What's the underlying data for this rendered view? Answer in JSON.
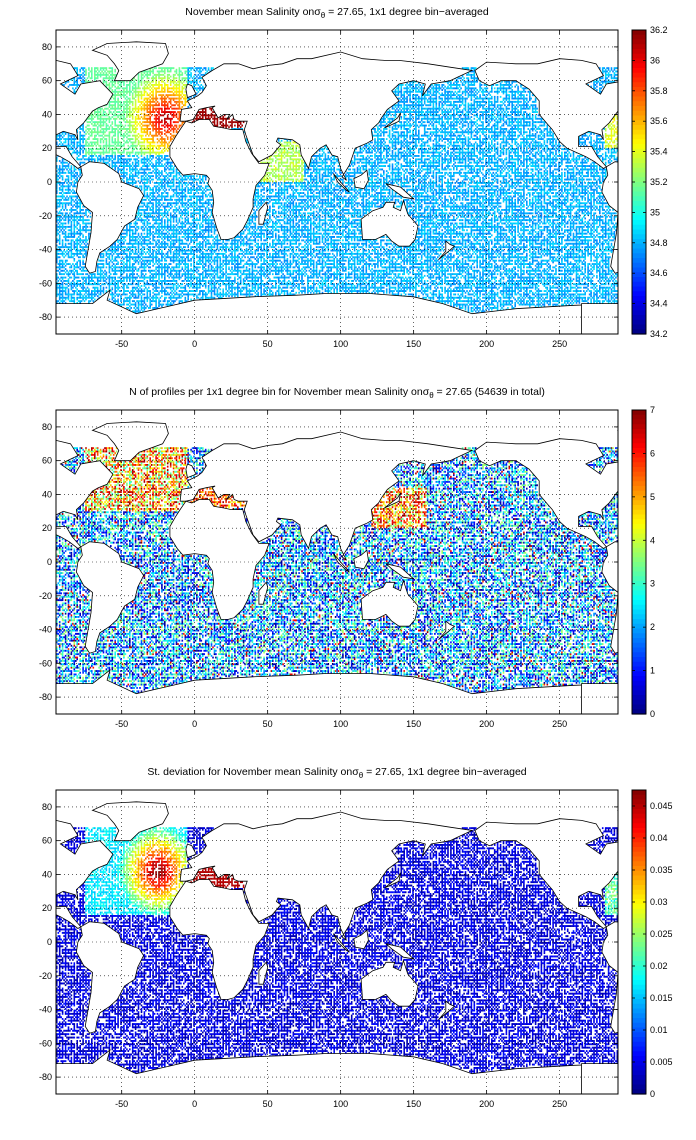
{
  "axes": {
    "x_ticks": [
      "-50",
      "0",
      "50",
      "100",
      "150",
      "200",
      "250"
    ],
    "x_values": [
      -50,
      0,
      50,
      100,
      150,
      200,
      250
    ],
    "y_ticks": [
      "80",
      "60",
      "40",
      "20",
      "0",
      "-20",
      "-40",
      "-60",
      "-80"
    ],
    "y_values": [
      80,
      60,
      40,
      20,
      0,
      -20,
      -40,
      -60,
      -80
    ],
    "xlim": [
      -95,
      290
    ],
    "ylim": [
      -90,
      90
    ]
  },
  "panels": [
    {
      "title_prefix": "November mean Salinity on",
      "sigma": "σ",
      "sigma_sub": "θ",
      "title_suffix": " = 27.65, 1x1 degree bin−averaged",
      "colorbar": {
        "min": 34.2,
        "max": 36.2,
        "ticks": [
          "36.2",
          "36",
          "35.8",
          "35.6",
          "35.4",
          "35.2",
          "35",
          "34.8",
          "34.6",
          "34.4",
          "34.2"
        ],
        "tick_values": [
          36.2,
          36.0,
          35.8,
          35.6,
          35.4,
          35.2,
          35.0,
          34.8,
          34.6,
          34.4,
          34.2
        ]
      }
    },
    {
      "title_prefix": "N of profiles per 1x1 degree bin for November mean Salinity on",
      "sigma": "σ",
      "sigma_sub": "θ",
      "title_suffix": " = 27.65 (54639 in total)",
      "colorbar": {
        "min": 0,
        "max": 7,
        "ticks": [
          "7",
          "6",
          "5",
          "4",
          "3",
          "2",
          "1",
          "0"
        ],
        "tick_values": [
          7,
          6,
          5,
          4,
          3,
          2,
          1,
          0
        ]
      }
    },
    {
      "title_prefix": "St. deviation for November mean Salinity on",
      "sigma": "σ",
      "sigma_sub": "θ",
      "title_suffix": " = 27.65, 1x1 degree bin−averaged",
      "colorbar": {
        "min": 0,
        "max": 0.0475,
        "ticks": [
          "0.045",
          "0.04",
          "0.035",
          "0.03",
          "0.025",
          "0.02",
          "0.015",
          "0.01",
          "0.005",
          "0"
        ],
        "tick_values": [
          0.045,
          0.04,
          0.035,
          0.03,
          0.025,
          0.02,
          0.015,
          0.01,
          0.005,
          0
        ]
      }
    }
  ],
  "colormap": "jet"
}
